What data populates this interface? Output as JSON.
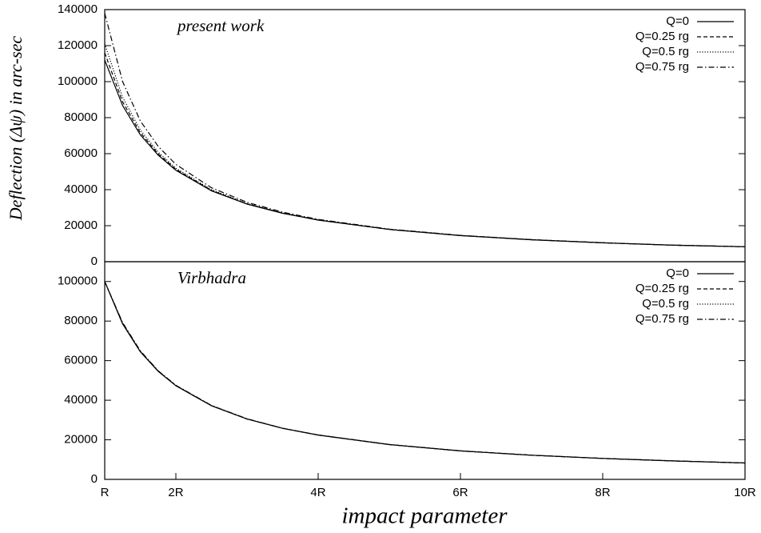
{
  "chart_data": [
    {
      "type": "line",
      "annotation": "present work",
      "y_label": "Deflection (Δψ) in arc-sec",
      "x": [
        1,
        1.25,
        1.5,
        1.75,
        2,
        2.5,
        3,
        3.5,
        4,
        5,
        6,
        7,
        8,
        9,
        10
      ],
      "xlim": [
        1,
        10
      ],
      "ylim": [
        0,
        140000
      ],
      "yticks": [
        0,
        20000,
        40000,
        60000,
        80000,
        100000,
        120000,
        140000
      ],
      "legend": "upper right",
      "series": [
        {
          "name": "Q=0",
          "color": "#000000",
          "dash": "solid",
          "values": [
            112000,
            86800,
            70500,
            59200,
            50800,
            39400,
            32000,
            26900,
            23100,
            17900,
            14500,
            12200,
            10500,
            9150,
            8300
          ]
        },
        {
          "name": "Q=0.25 rg",
          "color": "#000000",
          "dash": "dashed",
          "values": [
            116000,
            88850,
            71690,
            59950,
            51300,
            39660,
            32150,
            26990,
            23160,
            17930,
            14520,
            12210,
            10510,
            9160,
            8300
          ]
        },
        {
          "name": "Q=0.5 rg",
          "color": "#000000",
          "dash": "dotted",
          "values": [
            121000,
            91410,
            73170,
            60880,
            51930,
            39980,
            32330,
            27110,
            23240,
            17970,
            14540,
            12230,
            10520,
            9160,
            8310
          ]
        },
        {
          "name": "Q=0.75 rg",
          "color": "#000000",
          "dash": "dashdot",
          "values": [
            138000,
            100100,
            78200,
            64100,
            54050,
            41060,
            32960,
            27510,
            23510,
            18110,
            14620,
            12280,
            10550,
            9190,
            8330
          ]
        }
      ]
    },
    {
      "type": "line",
      "annotation": "Virbhadra",
      "x_label": "impact parameter",
      "x": [
        1,
        1.25,
        1.5,
        1.75,
        2,
        2.5,
        3,
        3.5,
        4,
        5,
        6,
        7,
        8,
        9,
        10
      ],
      "xlim": [
        1,
        10
      ],
      "xticks": [
        {
          "value": 1,
          "label": "R"
        },
        {
          "value": 2,
          "label": "2R"
        },
        {
          "value": 4,
          "label": "4R"
        },
        {
          "value": 6,
          "label": "6R"
        },
        {
          "value": 8,
          "label": "8R"
        },
        {
          "value": 10,
          "label": "10R"
        }
      ],
      "ylim": [
        0,
        110000
      ],
      "yticks": [
        0,
        20000,
        40000,
        60000,
        80000,
        100000
      ],
      "legend": "upper right",
      "series": [
        {
          "name": "Q=0",
          "color": "#000000",
          "dash": "solid",
          "values": [
            100000,
            78600,
            64500,
            54600,
            47300,
            37200,
            30500,
            25800,
            22400,
            17600,
            14400,
            12200,
            10600,
            9320,
            8300
          ]
        },
        {
          "name": "Q=0.25 rg",
          "color": "#000000",
          "dash": "dashed",
          "values": [
            100000,
            78800,
            64650,
            54700,
            47380,
            37240,
            30530,
            25820,
            22410,
            17605,
            14403,
            12202,
            10602,
            9322,
            8302
          ]
        },
        {
          "name": "Q=0.5 rg",
          "color": "#000000",
          "dash": "dotted",
          "values": [
            100000,
            79000,
            64800,
            54800,
            47450,
            37290,
            30560,
            25840,
            22420,
            17610,
            14406,
            12205,
            10605,
            9325,
            8305
          ]
        },
        {
          "name": "Q=0.75 rg",
          "color": "#000000",
          "dash": "dashdot",
          "values": [
            100000,
            79300,
            65000,
            54900,
            47550,
            37350,
            30600,
            25860,
            22440,
            17620,
            14410,
            12210,
            10610,
            9330,
            8310
          ]
        }
      ]
    }
  ]
}
